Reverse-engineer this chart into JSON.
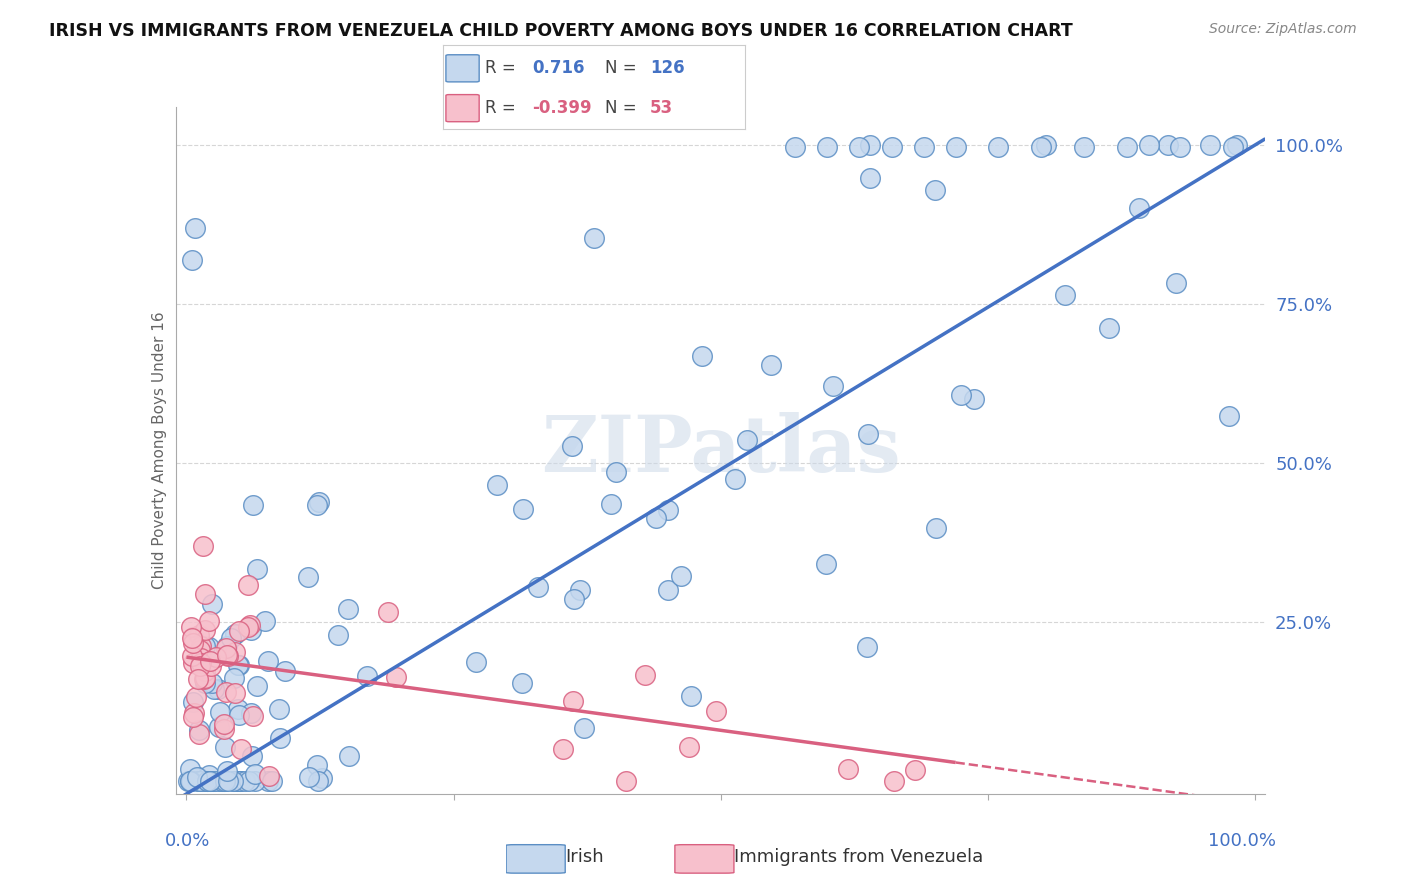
{
  "title": "IRISH VS IMMIGRANTS FROM VENEZUELA CHILD POVERTY AMONG BOYS UNDER 16 CORRELATION CHART",
  "source": "Source: ZipAtlas.com",
  "ylabel": "Child Poverty Among Boys Under 16",
  "irish_R": 0.716,
  "irish_N": 126,
  "venezuela_R": -0.399,
  "venezuela_N": 53,
  "irish_color": "#c5d8ee",
  "irish_edge_color": "#5b8ec4",
  "irish_line_color": "#4472c4",
  "venezuela_color": "#f7c0cc",
  "venezuela_edge_color": "#d96080",
  "venezuela_line_color": "#d96080",
  "watermark": "ZIPatlas",
  "background_color": "#ffffff",
  "grid_color": "#cccccc"
}
